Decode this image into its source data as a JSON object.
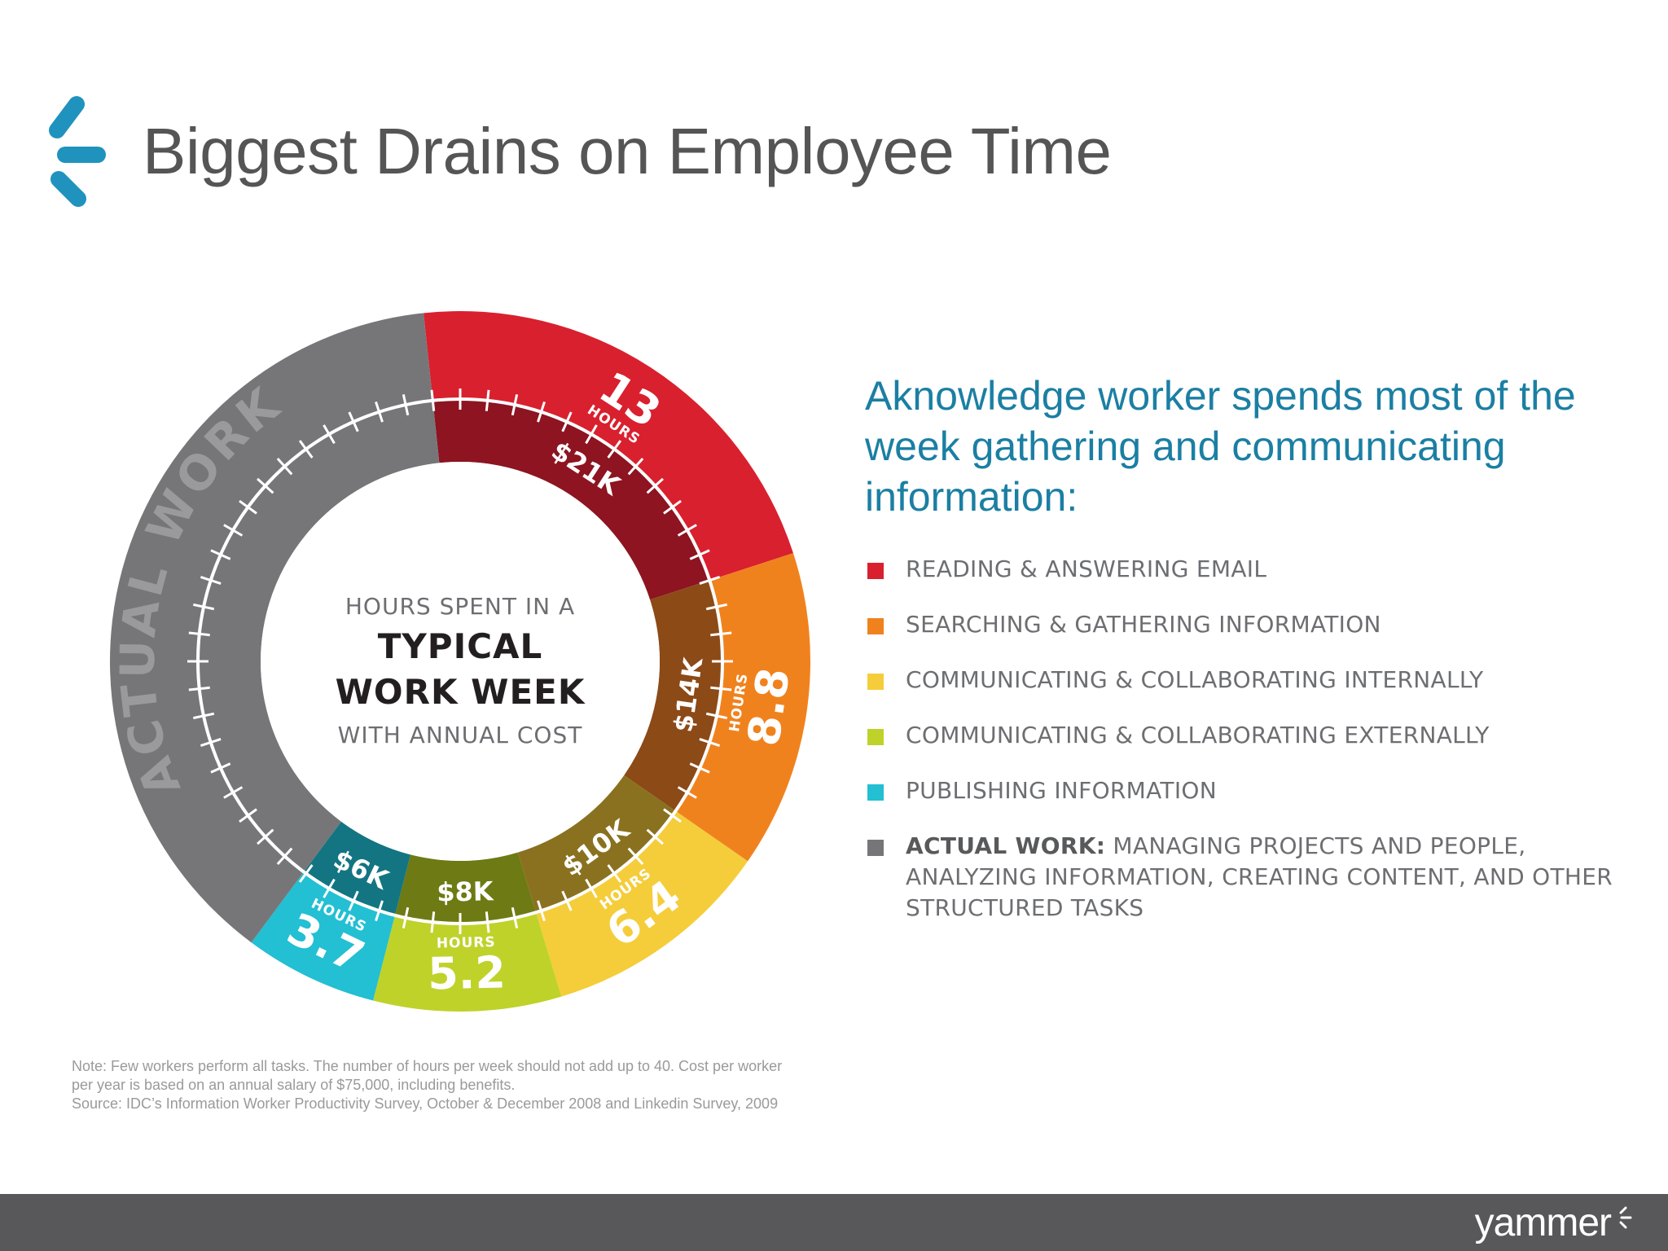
{
  "title": "Biggest Drains on Employee Time",
  "headline": "Aknowledge worker spends most of the week gathering and communicating information:",
  "chart_data": {
    "type": "pie",
    "variant": "donut",
    "center_text": {
      "line1": "HOURS SPENT IN A",
      "line2": "TYPICAL",
      "line3": "WORK WEEK",
      "line4": "WITH ANNUAL COST"
    },
    "unit_label": "HOURS",
    "categories": [
      "READING & ANSWERING EMAIL",
      "SEARCHING & GATHERING INFORMATION",
      "COMMUNICATING & COLLABORATING INTERNALLY",
      "COMMUNICATING & COLLABORATING EXTERNALLY",
      "PUBLISHING INFORMATION",
      "ACTUAL WORK"
    ],
    "slices": [
      {
        "label": "READING & ANSWERING EMAIL",
        "hours": 13,
        "hours_text": "13",
        "cost_text": "$21K",
        "color": "#d9202e",
        "inner_color": "#8d1420"
      },
      {
        "label": "SEARCHING & GATHERING INFORMATION",
        "hours": 8.8,
        "hours_text": "8.8",
        "cost_text": "$14K",
        "color": "#f0821e",
        "inner_color": "#8c4a17"
      },
      {
        "label": "COMMUNICATING & COLLABORATING INTERNALLY",
        "hours": 6.4,
        "hours_text": "6.4",
        "cost_text": "$10K",
        "color": "#f5cd3a",
        "inner_color": "#8a7120"
      },
      {
        "label": "COMMUNICATING & COLLABORATING EXTERNALLY",
        "hours": 5.2,
        "hours_text": "5.2",
        "cost_text": "$8K",
        "color": "#bfd22a",
        "inner_color": "#6e7a13"
      },
      {
        "label": "PUBLISHING INFORMATION",
        "hours": 3.7,
        "hours_text": "3.7",
        "cost_text": "$6K",
        "color": "#23bfd3",
        "inner_color": "#137582"
      },
      {
        "label": "ACTUAL WORK",
        "hours": 22.9,
        "hours_text": "",
        "cost_text": "",
        "color": "#767679",
        "inner_color": "#767679",
        "arc_label": "ACTUAL WORK"
      }
    ],
    "total_hours": 60
  },
  "legend": [
    {
      "bold": "",
      "text": "READING & ANSWERING EMAIL",
      "color": "#d9202e"
    },
    {
      "bold": "",
      "text": "SEARCHING & GATHERING INFORMATION",
      "color": "#f0821e"
    },
    {
      "bold": "",
      "text": "COMMUNICATING & COLLABORATING INTERNALLY",
      "color": "#f5cd3a"
    },
    {
      "bold": "",
      "text": "COMMUNICATING & COLLABORATING EXTERNALLY",
      "color": "#bfd22a"
    },
    {
      "bold": "",
      "text": "PUBLISHING INFORMATION",
      "color": "#23bfd3"
    },
    {
      "bold": "ACTUAL WORK:",
      "text": " MANAGING PROJECTS AND PEOPLE, ANALYZING INFORMATION, CREATING CONTENT, AND OTHER STRUCTURED TASKS",
      "color": "#767679"
    }
  ],
  "note": {
    "line1": "Note: Few workers perform all tasks. The number of hours per week should not add up to 40. Cost per worker",
    "line2": "per year is based on an annual salary of $75,000, including benefits.",
    "line3": "Source: IDC’s Information Worker Productivity Survey, October & December 2008 and Linkedin Survey, 2009"
  },
  "footer": {
    "logo_text": "yammer"
  },
  "colors": {
    "title": "#555555",
    "headline": "#1b7fa3",
    "footer_bar": "#58585a",
    "brand_blue": "#1f8fb5"
  }
}
